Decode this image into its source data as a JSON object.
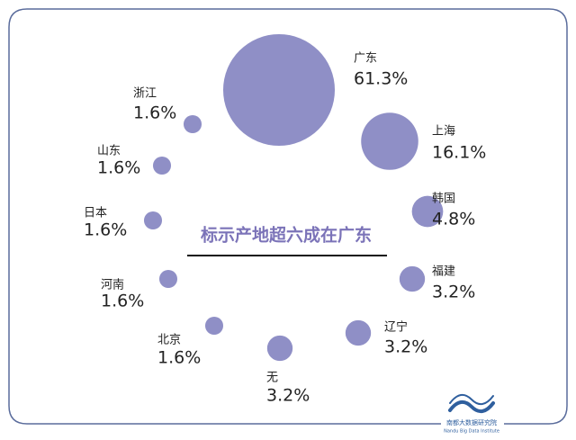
{
  "chart_data": {
    "type": "bubble",
    "title": "标示产地超六成在广东",
    "color": "#8f8fc6",
    "categories": [
      "广东",
      "上海",
      "韩国",
      "福建",
      "辽宁",
      "无",
      "北京",
      "河南",
      "日本",
      "山东",
      "浙江"
    ],
    "values": [
      61.3,
      16.1,
      4.8,
      3.2,
      3.2,
      3.2,
      1.6,
      1.6,
      1.6,
      1.6,
      1.6
    ],
    "value_labels": [
      "61.3%",
      "16.1%",
      "4.8%",
      "3.2%",
      "3.2%",
      "3.2%",
      "1.6%",
      "1.6%",
      "1.6%",
      "1.6%",
      "1.6%"
    ]
  },
  "logo": {
    "name": "南都大数据研究院",
    "subtitle": "Nandu Big Data Institute"
  }
}
